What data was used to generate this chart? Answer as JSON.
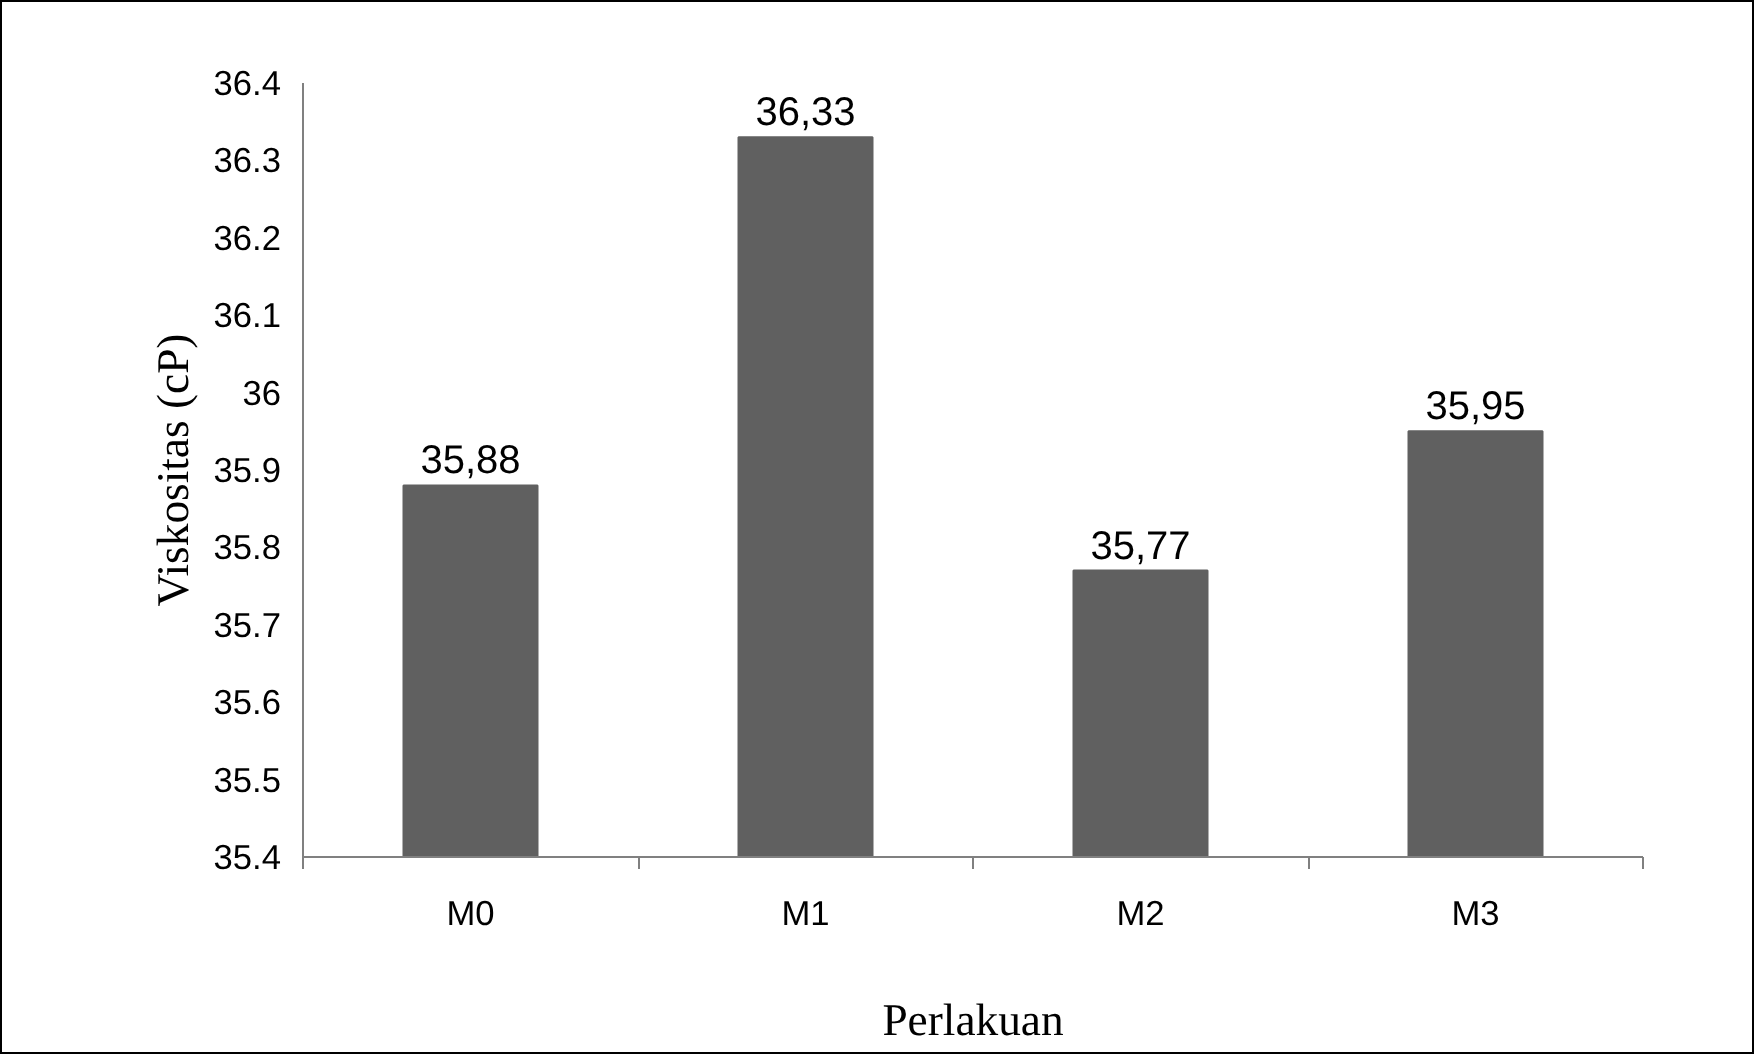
{
  "chart_data": {
    "type": "bar",
    "xlabel": "Perlakuan",
    "ylabel": "Viskositas (cP)",
    "categories": [
      "M0",
      "M1",
      "M2",
      "M3"
    ],
    "values": [
      35.88,
      36.33,
      35.77,
      35.95
    ],
    "value_labels": [
      "35,88",
      "36,33",
      "35,77",
      "35,95"
    ],
    "color": "#606060",
    "ylim": [
      35.4,
      36.4
    ],
    "yticks": [
      35.4,
      35.5,
      35.6,
      35.7,
      35.8,
      35.9,
      36,
      36.1,
      36.2,
      36.3,
      36.4
    ],
    "grid": false
  }
}
